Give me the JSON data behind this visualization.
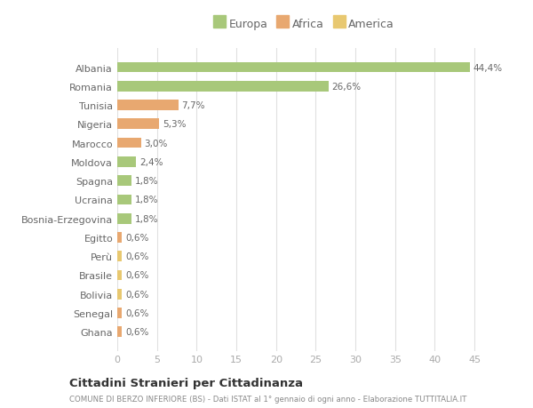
{
  "countries": [
    "Albania",
    "Romania",
    "Tunisia",
    "Nigeria",
    "Marocco",
    "Moldova",
    "Spagna",
    "Ucraina",
    "Bosnia-Erzegovina",
    "Egitto",
    "Perù",
    "Brasile",
    "Bolivia",
    "Senegal",
    "Ghana"
  ],
  "values": [
    44.4,
    26.6,
    7.7,
    5.3,
    3.0,
    2.4,
    1.8,
    1.8,
    1.8,
    0.6,
    0.6,
    0.6,
    0.6,
    0.6,
    0.6
  ],
  "labels": [
    "44,4%",
    "26,6%",
    "7,7%",
    "5,3%",
    "3,0%",
    "2,4%",
    "1,8%",
    "1,8%",
    "1,8%",
    "0,6%",
    "0,6%",
    "0,6%",
    "0,6%",
    "0,6%",
    "0,6%"
  ],
  "colors": [
    "#a8c87a",
    "#a8c87a",
    "#e8a870",
    "#e8a870",
    "#e8a870",
    "#a8c87a",
    "#a8c87a",
    "#a8c87a",
    "#a8c87a",
    "#e8a870",
    "#e8c870",
    "#e8c870",
    "#e8c870",
    "#e8a870",
    "#e8a870"
  ],
  "legend_labels": [
    "Europa",
    "Africa",
    "America"
  ],
  "legend_colors": [
    "#a8c87a",
    "#e8a870",
    "#e8c870"
  ],
  "title": "Cittadini Stranieri per Cittadinanza",
  "subtitle": "COMUNE DI BERZO INFERIORE (BS) - Dati ISTAT al 1° gennaio di ogni anno - Elaborazione TUTTITALIA.IT",
  "xlim": [
    0,
    47
  ],
  "xticks": [
    0,
    5,
    10,
    15,
    20,
    25,
    30,
    35,
    40,
    45
  ],
  "background_color": "#ffffff",
  "bar_height": 0.55
}
